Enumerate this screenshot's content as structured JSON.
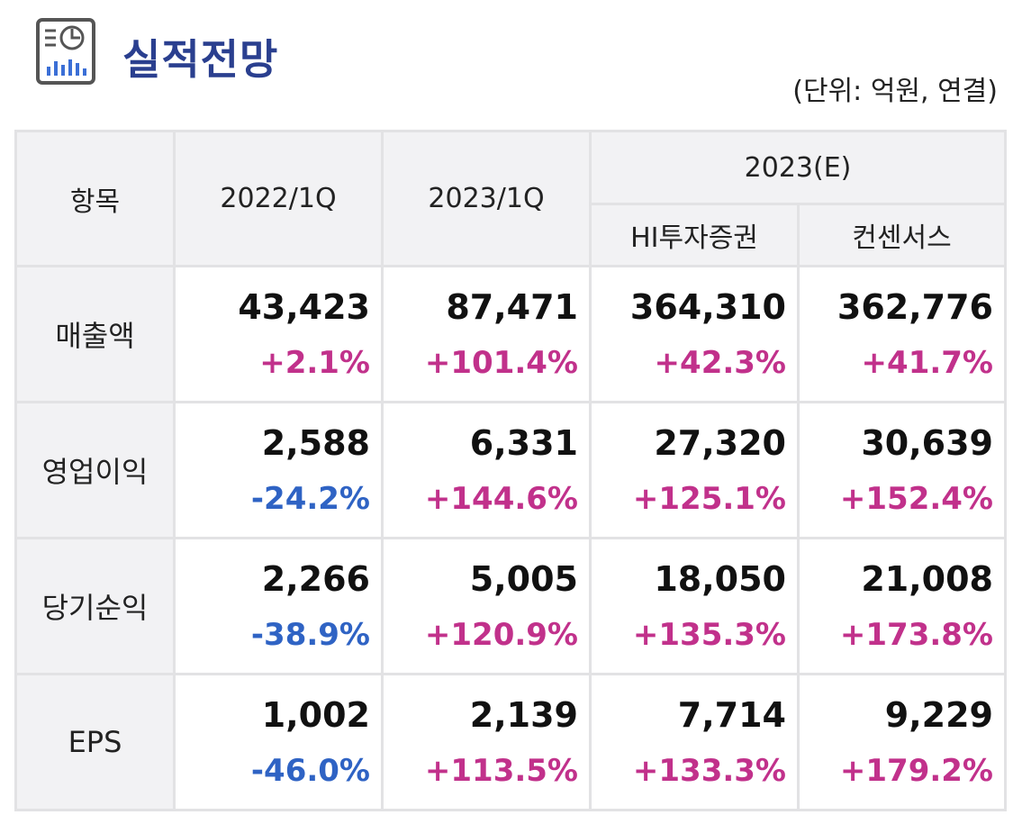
{
  "header": {
    "title": "실적전망",
    "unit": "(단위: 억원, 연결)",
    "icon": "report-chart-icon",
    "accent_color": "#2a3f8f"
  },
  "table": {
    "col_item": "항목",
    "col_2022_1q": "2022/1Q",
    "col_2023_1q": "2023/1Q",
    "col_2023e": "2023(E)",
    "col_hi": "HI투자증권",
    "col_consensus": "컨센서스",
    "rows": [
      {
        "label": "매출액",
        "cells": [
          {
            "value": "43,423",
            "change": "+2.1%"
          },
          {
            "value": "87,471",
            "change": "+101.4%"
          },
          {
            "value": "364,310",
            "change": "+42.3%"
          },
          {
            "value": "362,776",
            "change": "+41.7%"
          }
        ]
      },
      {
        "label": "영업이익",
        "cells": [
          {
            "value": "2,588",
            "change": "-24.2%"
          },
          {
            "value": "6,331",
            "change": "+144.6%"
          },
          {
            "value": "27,320",
            "change": "+125.1%"
          },
          {
            "value": "30,639",
            "change": "+152.4%"
          }
        ]
      },
      {
        "label": "당기순익",
        "cells": [
          {
            "value": "2,266",
            "change": "-38.9%"
          },
          {
            "value": "5,005",
            "change": "+120.9%"
          },
          {
            "value": "18,050",
            "change": "+135.3%"
          },
          {
            "value": "21,008",
            "change": "+173.8%"
          }
        ]
      },
      {
        "label": "EPS",
        "cells": [
          {
            "value": "1,002",
            "change": "-46.0%"
          },
          {
            "value": "2,139",
            "change": "+113.5%"
          },
          {
            "value": "7,714",
            "change": "+133.3%"
          },
          {
            "value": "9,229",
            "change": "+179.2%"
          }
        ]
      }
    ]
  },
  "colors": {
    "positive": "#c1318b",
    "negative": "#2f63c4",
    "header_bg": "#f2f2f4"
  }
}
